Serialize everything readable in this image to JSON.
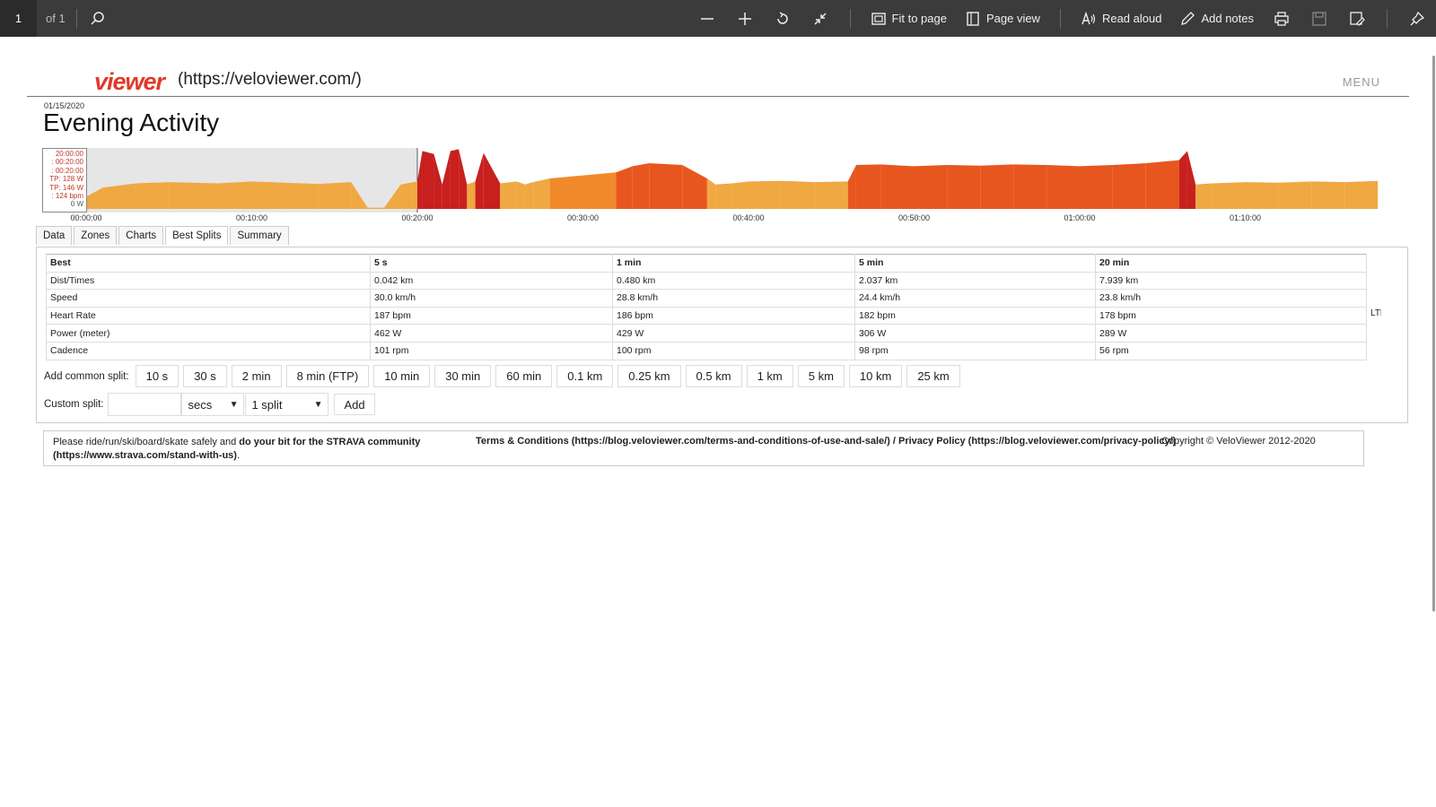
{
  "viewer": {
    "page_number": "1",
    "page_of": "of 1",
    "fit_to_page": "Fit to page",
    "page_view": "Page view",
    "read_aloud": "Read aloud",
    "add_notes": "Add notes"
  },
  "site": {
    "logo": "viewer",
    "url": "(https://veloviewer.com/)",
    "menu": "MENU"
  },
  "activity": {
    "date": "01/15/2020",
    "title": "Evening Activity"
  },
  "chart_legend": {
    "lines": [
      "20:00:00",
      ": 00:20:00",
      ": 00:20:00",
      "TP: 128 W",
      "TP: 146 W",
      ": 124 bpm"
    ],
    "zero": "0 W"
  },
  "chart_data": {
    "type": "area",
    "x_ticks": [
      "00:00:00",
      "00:10:00",
      "00:20:00",
      "00:30:00",
      "00:40:00",
      "00:50:00",
      "01:00:00",
      "01:10:00"
    ],
    "series": [
      {
        "x_minutes": [
          0,
          1,
          3,
          5,
          8,
          10,
          12,
          14,
          16,
          17,
          18,
          19,
          20,
          20.3,
          21,
          21.5,
          22,
          22.5,
          23,
          23.5,
          24,
          25,
          26,
          26.5,
          27,
          28,
          30,
          32,
          33,
          34,
          36,
          37.5,
          38,
          39,
          40,
          42,
          44,
          46,
          46.5,
          48,
          50,
          52,
          54,
          56,
          58,
          60,
          62,
          64,
          66,
          66.5,
          67,
          68,
          70,
          72,
          74,
          76,
          78
        ],
        "y_level": [
          0.2,
          0.35,
          0.42,
          0.44,
          0.42,
          0.45,
          0.43,
          0.41,
          0.44,
          0.02,
          0.02,
          0.4,
          0.45,
          0.95,
          0.9,
          0.4,
          0.95,
          0.98,
          0.4,
          0.45,
          0.92,
          0.42,
          0.45,
          0.4,
          0.44,
          0.5,
          0.55,
          0.6,
          0.7,
          0.75,
          0.72,
          0.5,
          0.4,
          0.42,
          0.45,
          0.46,
          0.44,
          0.45,
          0.72,
          0.73,
          0.7,
          0.72,
          0.71,
          0.73,
          0.72,
          0.7,
          0.72,
          0.75,
          0.8,
          0.95,
          0.4,
          0.42,
          0.44,
          0.43,
          0.45,
          0.44,
          0.46
        ]
      }
    ]
  },
  "tabs": [
    "Data",
    "Zones",
    "Charts",
    "Best Splits",
    "Summary"
  ],
  "splits": {
    "headers": [
      "Best",
      "5 s",
      "1 min",
      "5 min",
      "20 min"
    ],
    "rows": [
      {
        "label": "Dist/Times",
        "values": [
          "0.042 km",
          "0.480 km",
          "2.037 km",
          "7.939 km"
        ]
      },
      {
        "label": "Speed",
        "values": [
          "30.0 km/h",
          "28.8 km/h",
          "24.4 km/h",
          "23.8 km/h"
        ]
      },
      {
        "label": "Heart Rate",
        "values": [
          "187 bpm",
          "186 bpm",
          "182 bpm",
          "178 bpm"
        ]
      },
      {
        "label": "Power (meter)",
        "values": [
          "462 W",
          "429 W",
          "306 W",
          "289 W"
        ]
      },
      {
        "label": "Cadence",
        "values": [
          "101 rpm",
          "100 rpm",
          "98 rpm",
          "56 rpm"
        ]
      }
    ],
    "overflow_label": "LTH"
  },
  "common_split": {
    "label": "Add common split:",
    "buttons": [
      "10 s",
      "30 s",
      "2 min",
      "8 min (FTP)",
      "10 min",
      "30 min",
      "60 min",
      "0.1 km",
      "0.25 km",
      "0.5 km",
      "1 km",
      "5 km",
      "10 km",
      "25 km"
    ]
  },
  "custom_split": {
    "label": "Custom split:",
    "input_value": "",
    "unit": "secs",
    "count": "1 split",
    "add": "Add"
  },
  "footer": {
    "left_plain": "Please ride/run/ski/board/skate safely and ",
    "left_bold": "do your bit for the STRAVA community",
    "left_link": "(https://www.strava.com/stand-with-us)",
    "left_end": ".",
    "terms": "Terms & Conditions (https://blog.veloviewer.com/terms-and-conditions-of-use-and-sale/) / Privacy Policy (https://blog.veloviewer.com/privacy-policy/)",
    "copyright": "Copyright © VeloViewer 2012-2020"
  }
}
